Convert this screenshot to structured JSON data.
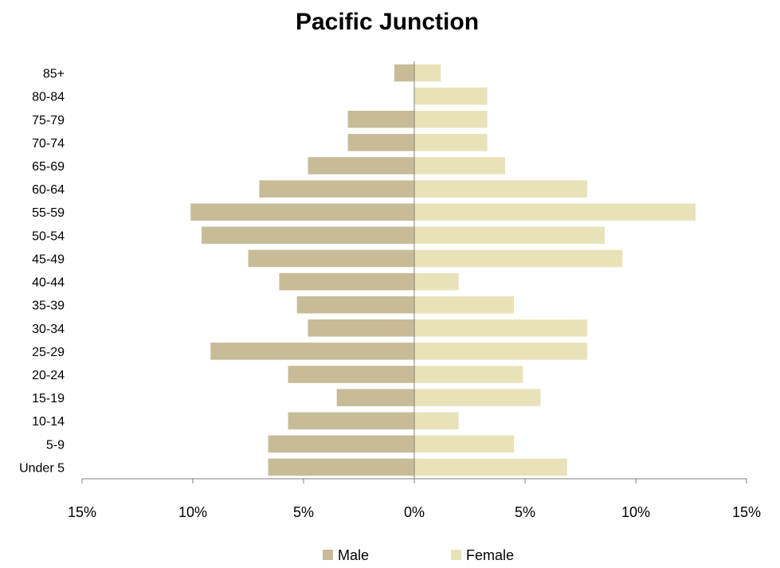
{
  "chart_data": {
    "type": "bar",
    "orientation": "horizontal",
    "title": "Pacific Junction",
    "categories": [
      "85+",
      "80-84",
      "75-79",
      "70-74",
      "65-69",
      "60-64",
      "55-59",
      "50-54",
      "45-49",
      "40-44",
      "35-39",
      "30-34",
      "25-29",
      "20-24",
      "15-19",
      "10-14",
      "5-9",
      "Under 5"
    ],
    "series": [
      {
        "name": "Male",
        "color": "#c8bb98",
        "values": [
          -0.9,
          0.0,
          -3.0,
          -3.0,
          -4.8,
          -7.0,
          -10.1,
          -9.6,
          -7.5,
          -6.1,
          -5.3,
          -4.8,
          -9.2,
          -5.7,
          -3.5,
          -5.7,
          -6.6,
          -6.6
        ]
      },
      {
        "name": "Female",
        "color": "#e9e2b9",
        "values": [
          1.2,
          3.3,
          3.3,
          3.3,
          4.1,
          7.8,
          12.7,
          8.6,
          9.4,
          2.0,
          4.5,
          7.8,
          7.8,
          4.9,
          5.7,
          2.0,
          4.5,
          6.9
        ]
      }
    ],
    "xlim": [
      -15,
      15
    ],
    "xticks": [
      -15,
      -10,
      -5,
      0,
      5,
      10,
      15
    ],
    "xtick_labels": [
      "15%",
      "10%",
      "5%",
      "0%",
      "5%",
      "10%",
      "15%"
    ],
    "legend_position": "bottom",
    "grid": false
  }
}
